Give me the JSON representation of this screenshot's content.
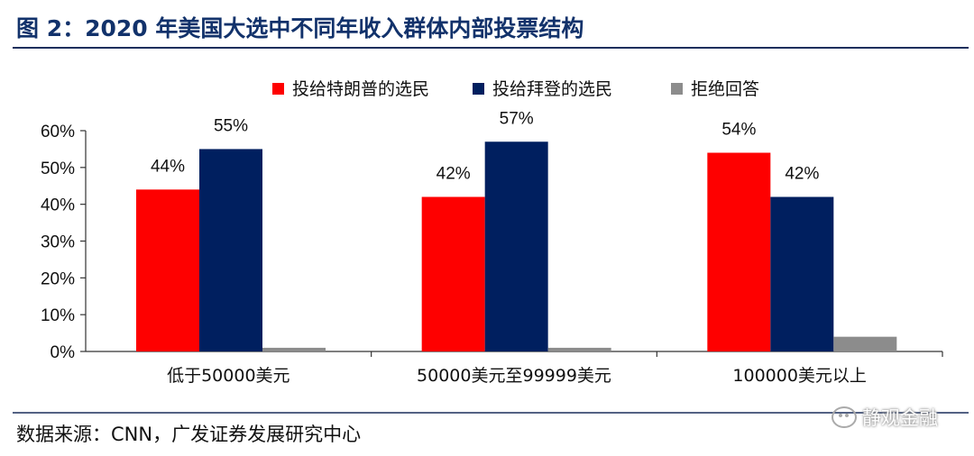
{
  "title": "图 2：2020 年美国大选中不同年收入群体内部投票结构",
  "source": "数据来源：CNN，广发证券发展研究中心",
  "watermark": "静观金融",
  "colors": {
    "trump": "#fe0000",
    "biden": "#001f5f",
    "refused": "#8c8c8c"
  },
  "chart_data": {
    "type": "bar",
    "categories": [
      "低于50000美元",
      "50000美元至99999美元",
      "100000美元以上"
    ],
    "series": [
      {
        "name": "投给特朗普的选民",
        "values": [
          44,
          42,
          54
        ],
        "labels": [
          "44%",
          "42%",
          "54%"
        ]
      },
      {
        "name": "投给拜登的选民",
        "values": [
          55,
          57,
          42
        ],
        "labels": [
          "55%",
          "57%",
          "42%"
        ]
      },
      {
        "name": "拒绝回答",
        "values": [
          1,
          1,
          4
        ],
        "labels": [
          "",
          "",
          ""
        ]
      }
    ],
    "ylim": [
      0,
      60
    ],
    "yticks": [
      "0%",
      "10%",
      "20%",
      "30%",
      "40%",
      "50%",
      "60%"
    ],
    "legend_position": "top",
    "grid": false
  }
}
